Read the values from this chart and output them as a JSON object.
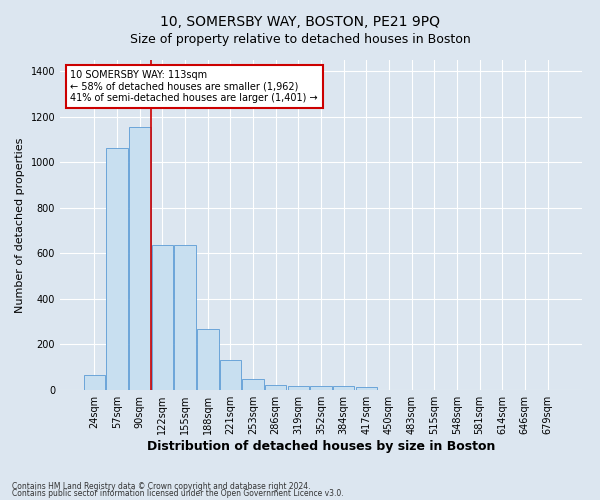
{
  "title": "10, SOMERSBY WAY, BOSTON, PE21 9PQ",
  "subtitle": "Size of property relative to detached houses in Boston",
  "xlabel": "Distribution of detached houses by size in Boston",
  "ylabel": "Number of detached properties",
  "footnote1": "Contains HM Land Registry data © Crown copyright and database right 2024.",
  "footnote2": "Contains public sector information licensed under the Open Government Licence v3.0.",
  "bar_labels": [
    "24sqm",
    "57sqm",
    "90sqm",
    "122sqm",
    "155sqm",
    "188sqm",
    "221sqm",
    "253sqm",
    "286sqm",
    "319sqm",
    "352sqm",
    "384sqm",
    "417sqm",
    "450sqm",
    "483sqm",
    "515sqm",
    "548sqm",
    "581sqm",
    "614sqm",
    "646sqm",
    "679sqm"
  ],
  "bar_values": [
    65,
    1065,
    1155,
    635,
    635,
    270,
    130,
    48,
    22,
    18,
    18,
    18,
    15,
    0,
    0,
    0,
    0,
    0,
    0,
    0,
    0
  ],
  "bar_color": "#c8dff0",
  "bar_edge_color": "#5b9bd5",
  "property_line_color": "#cc0000",
  "annotation_text": "10 SOMERSBY WAY: 113sqm\n← 58% of detached houses are smaller (1,962)\n41% of semi-detached houses are larger (1,401) →",
  "annotation_box_color": "#ffffff",
  "annotation_box_edge": "#cc0000",
  "ylim": [
    0,
    1450
  ],
  "yticks": [
    0,
    200,
    400,
    600,
    800,
    1000,
    1200,
    1400
  ],
  "bg_color": "#dce6f0",
  "title_fontsize": 10,
  "subtitle_fontsize": 9,
  "axis_label_fontsize": 8,
  "tick_fontsize": 7
}
